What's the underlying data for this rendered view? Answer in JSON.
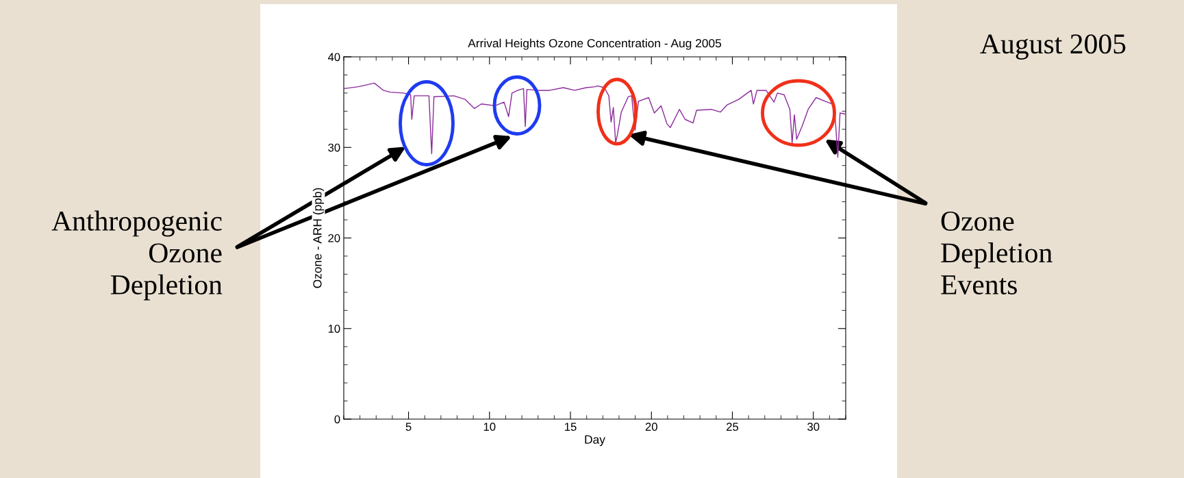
{
  "chart_data": {
    "type": "line",
    "title": "Arrival Heights Ozone Concentration - Aug 2005",
    "xlabel": "Day",
    "ylabel": "Ozone - ARH (ppb)",
    "xlim": [
      1,
      32
    ],
    "xticks": [
      5,
      10,
      15,
      20,
      25,
      30
    ],
    "ylim": [
      0,
      40
    ],
    "yticks": [
      0,
      10,
      20,
      30,
      40
    ],
    "grid": false,
    "legend": false,
    "marker": "none",
    "line_style": "solid",
    "annotations": [
      "August 2005",
      "Anthropogenic\nOzone\nDepletion",
      "Ozone\nDepletion\nEvents"
    ],
    "series": [
      {
        "color": "#8b2a9b",
        "x": [
          1.05,
          1.9,
          2.89,
          3.45,
          3.87,
          4.71,
          5.13,
          5.2,
          5.35,
          6.26,
          6.43,
          6.57,
          7.8,
          8.5,
          9.07,
          9.5,
          10.34,
          10.9,
          11.18,
          11.39,
          11.75,
          12.1,
          12.21,
          12.31,
          13.01,
          13.71,
          14.56,
          15.26,
          15.97,
          16.53,
          16.67,
          17.09,
          17.37,
          17.51,
          17.65,
          17.79,
          17.9,
          18.14,
          18.57,
          18.78,
          18.99,
          19.2,
          19.83,
          20.18,
          20.6,
          20.96,
          21.17,
          21.73,
          22.08,
          22.57,
          22.79,
          23.7,
          24.26,
          24.68,
          25.39,
          26.16,
          26.3,
          26.52,
          27.08,
          27.57,
          27.78,
          28.2,
          28.55,
          28.69,
          28.83,
          28.97,
          29.32,
          29.68,
          30.17,
          30.73,
          31.3,
          31.51,
          31.65,
          31.93
        ],
        "values": [
          36.5,
          36.7,
          37.1,
          36.3,
          36.1,
          36.0,
          35.8,
          33.1,
          35.7,
          35.7,
          29.3,
          35.6,
          35.7,
          35.3,
          34.3,
          34.8,
          34.6,
          35.0,
          33.4,
          36.0,
          36.3,
          36.5,
          32.3,
          36.4,
          36.3,
          36.3,
          36.6,
          36.3,
          36.6,
          36.7,
          36.8,
          36.6,
          35.7,
          32.8,
          34.4,
          30.5,
          31.4,
          33.9,
          35.6,
          35.7,
          31.9,
          35.1,
          35.5,
          33.8,
          34.6,
          32.6,
          32.2,
          34.2,
          33.1,
          32.7,
          34.1,
          34.2,
          33.9,
          34.7,
          35.3,
          36.3,
          34.8,
          36.3,
          36.3,
          35.0,
          36.0,
          35.8,
          34.2,
          30.5,
          33.6,
          30.9,
          32.4,
          34.2,
          35.5,
          35.1,
          34.7,
          28.9,
          33.8,
          33.7
        ]
      }
    ]
  }
}
